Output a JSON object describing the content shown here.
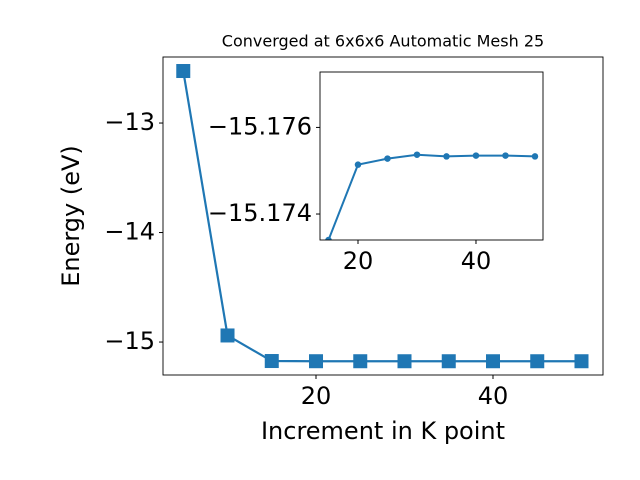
{
  "chart_data": [
    {
      "type": "line",
      "title": "Converged at 6x6x6 Automatic Mesh 25",
      "x_label": "Increment in K point",
      "y_label": "Energy (eV)",
      "x": [
        5,
        10,
        15,
        20,
        25,
        30,
        35,
        40,
        45,
        50
      ],
      "series": [
        {
          "color": "#1f77b4",
          "marker": "square",
          "values": [
            -12.525,
            -14.94,
            -15.1734,
            -15.17514,
            -15.17528,
            -15.17537,
            -15.17533,
            -15.17535,
            -15.17535,
            -15.17533
          ]
        }
      ],
      "xlim": [
        2.71,
        52.43
      ],
      "ylim": [
        -15.301,
        -12.397
      ],
      "xticks": [
        20,
        40
      ],
      "yticks": [
        {
          "value": -15,
          "label": "−15"
        },
        {
          "value": -14,
          "label": "−14"
        },
        {
          "value": -13,
          "label": "−13"
        }
      ]
    },
    {
      "type": "line",
      "x": [
        15,
        20,
        25,
        30,
        35,
        40,
        45,
        50
      ],
      "series": [
        {
          "color": "#1f77b4",
          "marker": "circle",
          "values": [
            -15.1734,
            -15.17514,
            -15.17528,
            -15.17537,
            -15.17533,
            -15.17535,
            -15.17535,
            -15.17533
          ]
        }
      ],
      "xlim": [
        13.56,
        51.36
      ],
      "ylim": [
        -15.1734,
        -15.17728
      ],
      "xticks": [
        20,
        40
      ],
      "yticks": [
        {
          "value": -15.176,
          "label": "−15.176"
        },
        {
          "value": -15.174,
          "label": "−15.174"
        }
      ]
    }
  ]
}
